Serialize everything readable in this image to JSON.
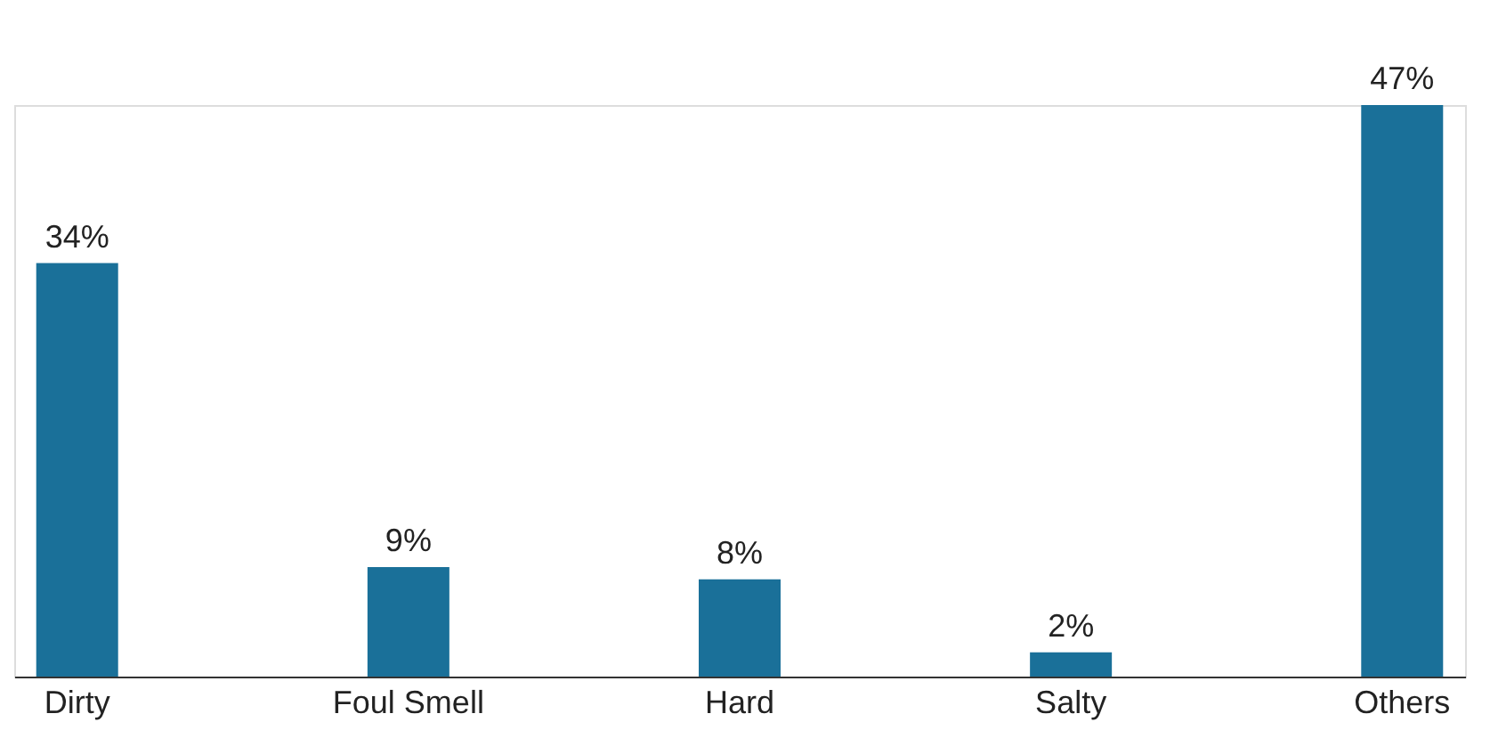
{
  "chart_data": {
    "type": "bar",
    "categories": [
      "Dirty",
      "Foul Smell",
      "Hard",
      "Salty",
      "Others"
    ],
    "values": [
      34,
      9,
      8,
      2,
      47
    ],
    "value_labels": [
      "34%",
      "9%",
      "8%",
      "2%",
      "47%"
    ],
    "color": "#1a7099",
    "grid": false,
    "tick_labels": "x"
  }
}
